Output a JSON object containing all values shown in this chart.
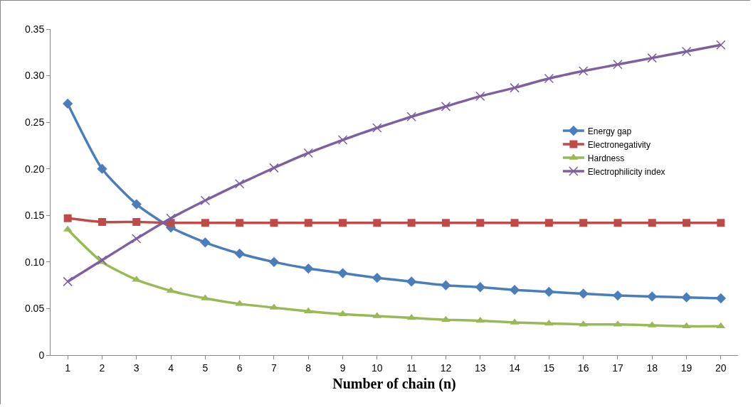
{
  "chart_data": {
    "type": "line",
    "xlabel": "Number of chain (n)",
    "x": [
      1,
      2,
      3,
      4,
      5,
      6,
      7,
      8,
      9,
      10,
      11,
      12,
      13,
      14,
      15,
      16,
      17,
      18,
      19,
      20
    ],
    "xlim": [
      0.5,
      20.5
    ],
    "xticks": [
      1,
      2,
      3,
      4,
      5,
      6,
      7,
      8,
      9,
      10,
      11,
      12,
      13,
      14,
      15,
      16,
      17,
      18,
      19,
      20
    ],
    "series": [
      {
        "name": "Energy gap",
        "color": "#4a7ebb",
        "marker": "diamond",
        "values": [
          0.27,
          0.2,
          0.162,
          0.137,
          0.121,
          0.109,
          0.1,
          0.093,
          0.088,
          0.083,
          0.079,
          0.075,
          0.073,
          0.07,
          0.068,
          0.066,
          0.064,
          0.063,
          0.062,
          0.061
        ]
      },
      {
        "name": "Electronegativity",
        "color": "#be4b48",
        "marker": "square",
        "values": [
          0.147,
          0.143,
          0.143,
          0.142,
          0.142,
          0.142,
          0.142,
          0.142,
          0.142,
          0.142,
          0.142,
          0.142,
          0.142,
          0.142,
          0.142,
          0.142,
          0.142,
          0.142,
          0.142,
          0.142
        ]
      },
      {
        "name": "Hardness",
        "color": "#98b954",
        "marker": "triangle",
        "values": [
          0.135,
          0.1,
          0.081,
          0.069,
          0.061,
          0.055,
          0.051,
          0.047,
          0.044,
          0.042,
          0.04,
          0.038,
          0.037,
          0.035,
          0.034,
          0.033,
          0.033,
          0.032,
          0.031,
          0.031
        ]
      },
      {
        "name": "Electrophilicity index",
        "color": "#7d60a0",
        "marker": "cross",
        "values": [
          0.079,
          0.102,
          0.125,
          0.147,
          0.166,
          0.184,
          0.201,
          0.217,
          0.231,
          0.244,
          0.256,
          0.267,
          0.278,
          0.287,
          0.297,
          0.305,
          0.312,
          0.319,
          0.326,
          0.333
        ]
      }
    ],
    "ylim": [
      0,
      0.35
    ],
    "yticks": [
      0,
      0.05,
      {
        "value": 0.1,
        "label": "0.10"
      },
      0.15,
      {
        "value": 0.2,
        "label": "0.20"
      },
      0.25,
      {
        "value": 0.3,
        "label": "0.30"
      },
      0.35
    ],
    "grid": false,
    "legend": "right",
    "line_style": "solid"
  }
}
